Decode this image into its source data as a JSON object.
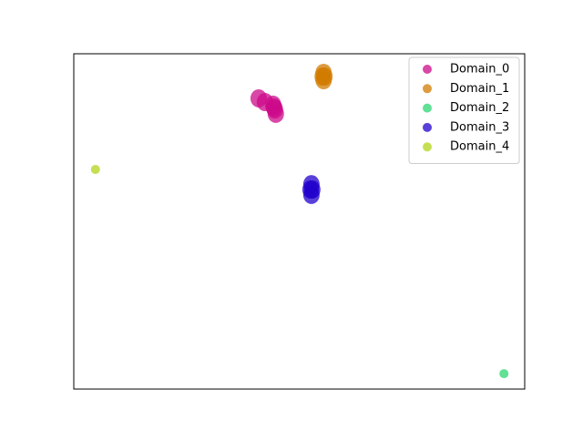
{
  "chart_data": {
    "type": "scatter",
    "legend": "upper right",
    "xlim": [
      0,
      100
    ],
    "ylim": [
      0,
      100
    ],
    "series": [
      {
        "name": "Domain_0",
        "color": "#cc0a8a",
        "x": [
          41.0,
          42.4,
          44.2,
          44.6,
          44.8,
          44.4
        ],
        "y": [
          86.7,
          85.6,
          84.8,
          83.4,
          82.1,
          84.0
        ]
      },
      {
        "name": "Domain_1",
        "color": "#d17b00",
        "x": [
          55.4,
          55.4,
          55.6,
          55.2
        ],
        "y": [
          94.3,
          92.1,
          93.2,
          93.2
        ]
      },
      {
        "name": "Domain_2",
        "color": "#2ed573",
        "x": [
          95.4
        ],
        "y": [
          4.6
        ]
      },
      {
        "name": "Domain_3",
        "color": "#2200cc",
        "x": [
          52.7,
          52.7,
          52.5,
          52.9
        ],
        "y": [
          61.1,
          57.9,
          59.5,
          59.5
        ]
      },
      {
        "name": "Domain_4",
        "color": "#b2d41c",
        "x": [
          4.8
        ],
        "y": [
          65.5
        ]
      }
    ]
  }
}
